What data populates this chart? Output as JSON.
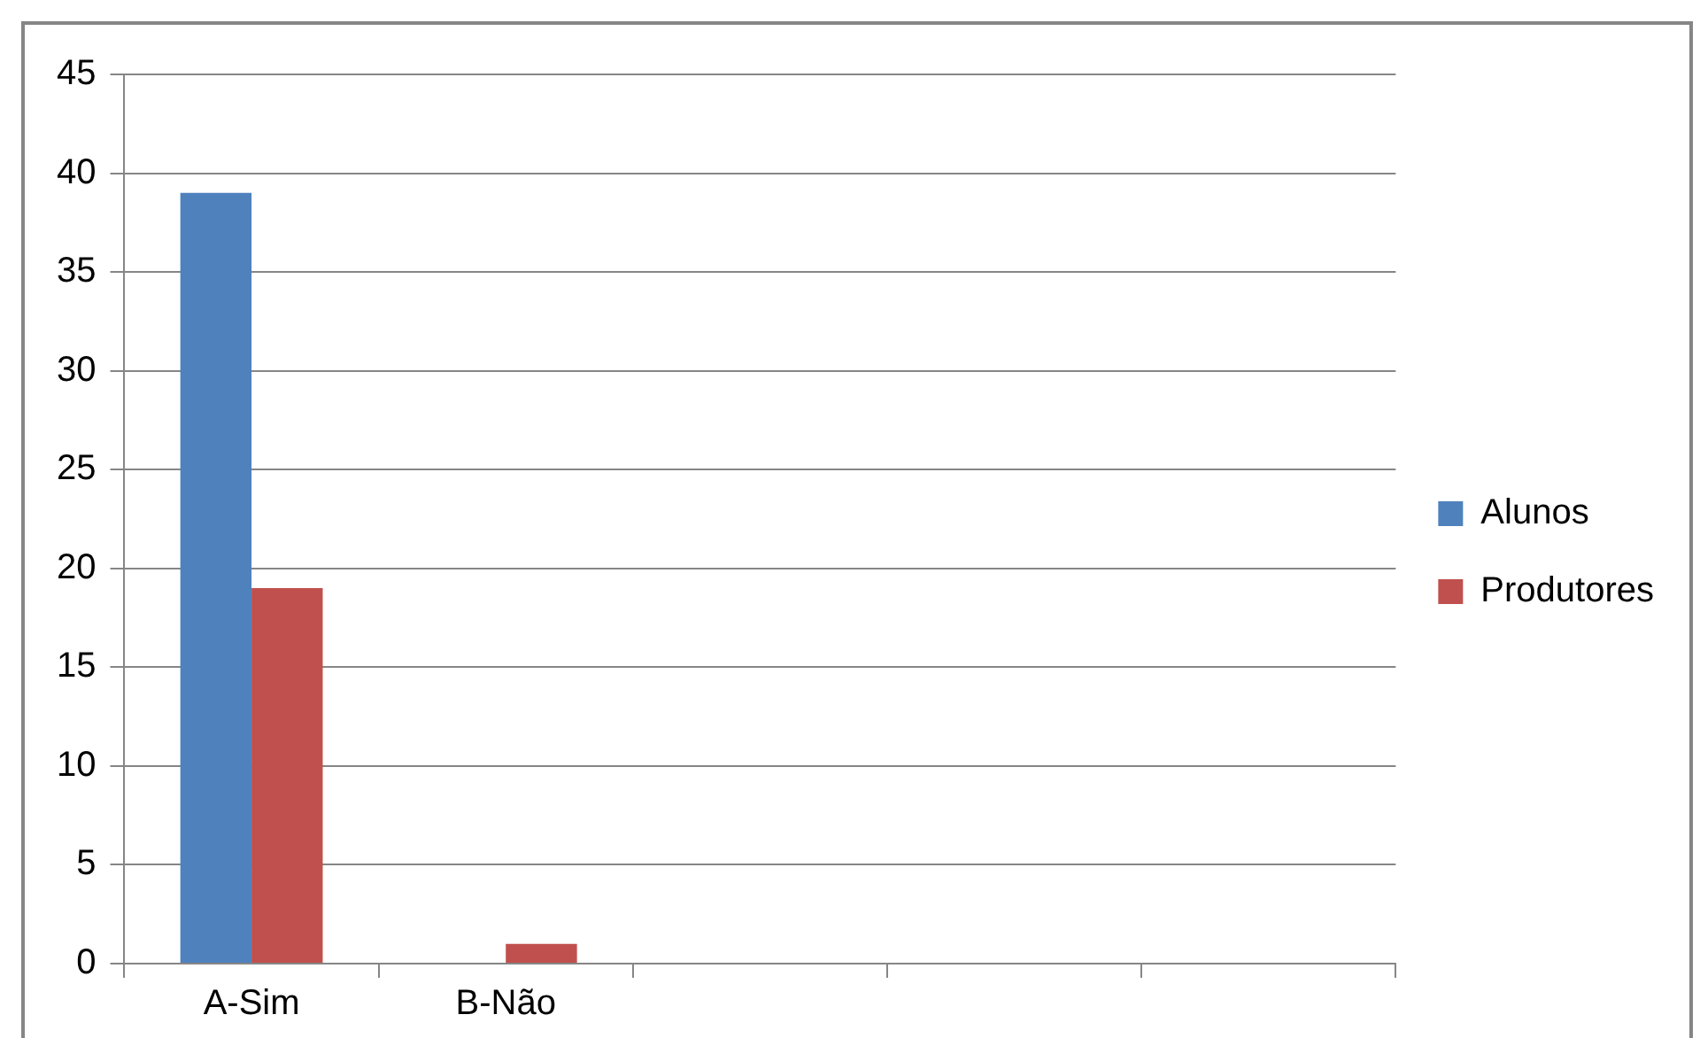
{
  "chart_data": {
    "type": "bar",
    "categories": [
      "A-Sim",
      "B-Não",
      null,
      null,
      null
    ],
    "series": [
      {
        "name": "Alunos",
        "color": "#4f81bd",
        "values": [
          39,
          0,
          null,
          null,
          null
        ]
      },
      {
        "name": "Produtores",
        "color": "#c0504d",
        "values": [
          19,
          1,
          null,
          null,
          null
        ]
      }
    ],
    "ylim": [
      0,
      45
    ],
    "yticks": [
      0,
      5,
      10,
      15,
      20,
      25,
      30,
      35,
      40,
      45
    ],
    "grid": "y",
    "legend": "right"
  }
}
